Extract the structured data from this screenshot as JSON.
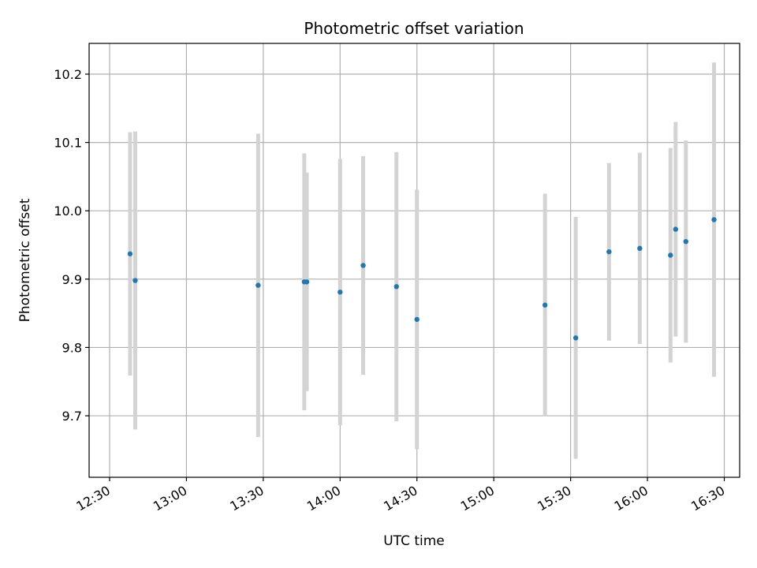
{
  "chart_data": {
    "type": "scatter",
    "title": "Photometric offset variation",
    "xlabel": "UTC time",
    "ylabel": "Photometric offset",
    "x_axis_kind": "time",
    "xlim": [
      "12:22",
      "16:36"
    ],
    "ylim": [
      9.61,
      10.245
    ],
    "x_ticks": [
      "12:30",
      "13:00",
      "13:30",
      "14:00",
      "14:30",
      "15:00",
      "15:30",
      "16:00",
      "16:30"
    ],
    "y_ticks": [
      "9.7",
      "9.8",
      "9.9",
      "10.0",
      "10.1",
      "10.2"
    ],
    "grid": true,
    "x_tick_rotation": "30 degrees",
    "point_color": "#1f77b4",
    "errorbar_color": "#d3d3d3",
    "points": [
      {
        "x": "12:38",
        "y": 9.937,
        "err": 0.178
      },
      {
        "x": "12:40",
        "y": 9.898,
        "err": 0.218
      },
      {
        "x": "13:28",
        "y": 9.891,
        "err": 0.222
      },
      {
        "x": "13:46",
        "y": 9.896,
        "err": 0.188
      },
      {
        "x": "13:47",
        "y": 9.896,
        "err": 0.16
      },
      {
        "x": "14:00",
        "y": 9.881,
        "err": 0.195
      },
      {
        "x": "14:09",
        "y": 9.92,
        "err": 0.16
      },
      {
        "x": "14:22",
        "y": 9.889,
        "err": 0.197
      },
      {
        "x": "14:30",
        "y": 9.841,
        "err": 0.19
      },
      {
        "x": "15:20",
        "y": 9.862,
        "err": 0.163
      },
      {
        "x": "15:32",
        "y": 9.814,
        "err": 0.177
      },
      {
        "x": "15:45",
        "y": 9.94,
        "err": 0.13
      },
      {
        "x": "15:57",
        "y": 9.945,
        "err": 0.14
      },
      {
        "x": "16:09",
        "y": 9.935,
        "err": 0.157
      },
      {
        "x": "16:11",
        "y": 9.973,
        "err": 0.157
      },
      {
        "x": "16:15",
        "y": 9.955,
        "err": 0.148
      },
      {
        "x": "16:26",
        "y": 9.987,
        "err": 0.23
      }
    ]
  }
}
